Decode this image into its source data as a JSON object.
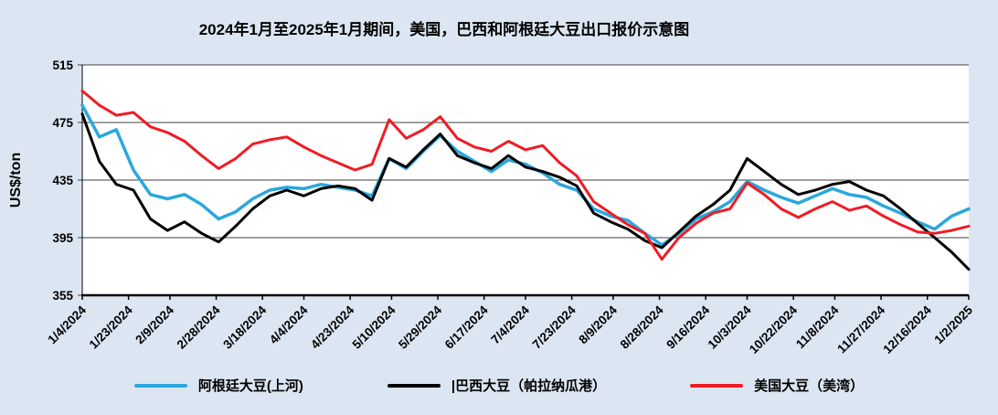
{
  "title": "2024年1月至2025年1月期间，美国，巴西和阿根廷大豆出口报价示意图",
  "colors": {
    "page_background": "#dce6f2",
    "plot_background": "#ffffff",
    "grid": "#404040",
    "axis": "#000000",
    "argentina_line": "#2aa7dd",
    "brazil_line": "#000000",
    "us_line": "#ee1c25"
  },
  "y_axis": {
    "label": "US$/ton",
    "ticks": [
      355,
      395,
      435,
      475,
      515
    ]
  },
  "legend": [
    {
      "label": "阿根廷大豆(上河)",
      "color": "#2aa7dd"
    },
    {
      "label": "|巴西大豆（帕拉纳瓜港）",
      "color": "#000000"
    },
    {
      "label": "美国大豆（美湾）",
      "color": "#ee1c25"
    }
  ],
  "chart_data": {
    "type": "line",
    "title": "2024年1月至2025年1月期间，美国，巴西和阿根廷大豆出口报价示意图",
    "xlabel": "",
    "ylabel": "US$/ton",
    "ylim": [
      355,
      515
    ],
    "grid": true,
    "legend_position": "bottom",
    "x_tick_labels": [
      "1/4/2024",
      "1/23/2024",
      "2/9/2024",
      "2/28/2024",
      "3/18/2024",
      "4/4/2024",
      "4/23/2024",
      "5/10/2024",
      "5/29/2024",
      "6/17/2024",
      "7/4/2024",
      "7/23/2024",
      "8/9/2024",
      "8/28/2024",
      "9/16/2024",
      "10/3/2024",
      "10/22/2024",
      "11/8/2024",
      "11/27/2024",
      "12/16/2024",
      "1/2/2025"
    ],
    "x": [
      "1/4/2024",
      "1/11/2024",
      "1/18/2024",
      "1/25/2024",
      "2/1/2024",
      "2/8/2024",
      "2/15/2024",
      "2/22/2024",
      "2/29/2024",
      "3/7/2024",
      "3/14/2024",
      "3/21/2024",
      "3/28/2024",
      "4/4/2024",
      "4/11/2024",
      "4/18/2024",
      "4/25/2024",
      "5/2/2024",
      "5/9/2024",
      "5/16/2024",
      "5/23/2024",
      "5/30/2024",
      "6/6/2024",
      "6/13/2024",
      "6/20/2024",
      "6/27/2024",
      "7/4/2024",
      "7/11/2024",
      "7/18/2024",
      "7/25/2024",
      "8/1/2024",
      "8/8/2024",
      "8/15/2024",
      "8/22/2024",
      "8/29/2024",
      "9/5/2024",
      "9/12/2024",
      "9/19/2024",
      "9/26/2024",
      "10/3/2024",
      "10/10/2024",
      "10/17/2024",
      "10/24/2024",
      "10/31/2024",
      "11/7/2024",
      "11/14/2024",
      "11/21/2024",
      "11/28/2024",
      "12/5/2024",
      "12/12/2024",
      "12/19/2024",
      "12/26/2024",
      "1/2/2025"
    ],
    "series": [
      {
        "name": "阿根廷大豆(上河)",
        "color": "#2aa7dd",
        "values": [
          487,
          465,
          470,
          442,
          425,
          422,
          425,
          418,
          408,
          413,
          422,
          428,
          430,
          429,
          432,
          430,
          428,
          424,
          450,
          443,
          455,
          466,
          455,
          448,
          441,
          449,
          446,
          440,
          432,
          428,
          415,
          410,
          407,
          398,
          390,
          398,
          408,
          413,
          420,
          434,
          428,
          423,
          419,
          424,
          429,
          425,
          423,
          417,
          412,
          406,
          401,
          410,
          415
        ]
      },
      {
        "name": "巴西大豆（帕拉纳瓜港）",
        "color": "#000000",
        "values": [
          481,
          448,
          432,
          428,
          408,
          400,
          406,
          398,
          392,
          403,
          415,
          424,
          428,
          424,
          429,
          431,
          429,
          421,
          450,
          444,
          456,
          467,
          452,
          447,
          443,
          452,
          444,
          441,
          437,
          431,
          412,
          406,
          401,
          393,
          388,
          399,
          410,
          418,
          428,
          450,
          441,
          432,
          425,
          428,
          432,
          434,
          428,
          424,
          415,
          405,
          395,
          385,
          373
        ]
      },
      {
        "name": "美国大豆（美湾）",
        "color": "#ee1c25",
        "values": [
          497,
          487,
          480,
          482,
          472,
          468,
          462,
          452,
          443,
          450,
          460,
          463,
          465,
          458,
          452,
          447,
          442,
          446,
          477,
          464,
          470,
          479,
          464,
          458,
          455,
          462,
          456,
          459,
          447,
          438,
          420,
          412,
          404,
          398,
          380,
          395,
          405,
          412,
          415,
          433,
          425,
          415,
          409,
          415,
          420,
          414,
          417,
          410,
          404,
          399,
          398,
          400,
          403
        ]
      }
    ]
  }
}
